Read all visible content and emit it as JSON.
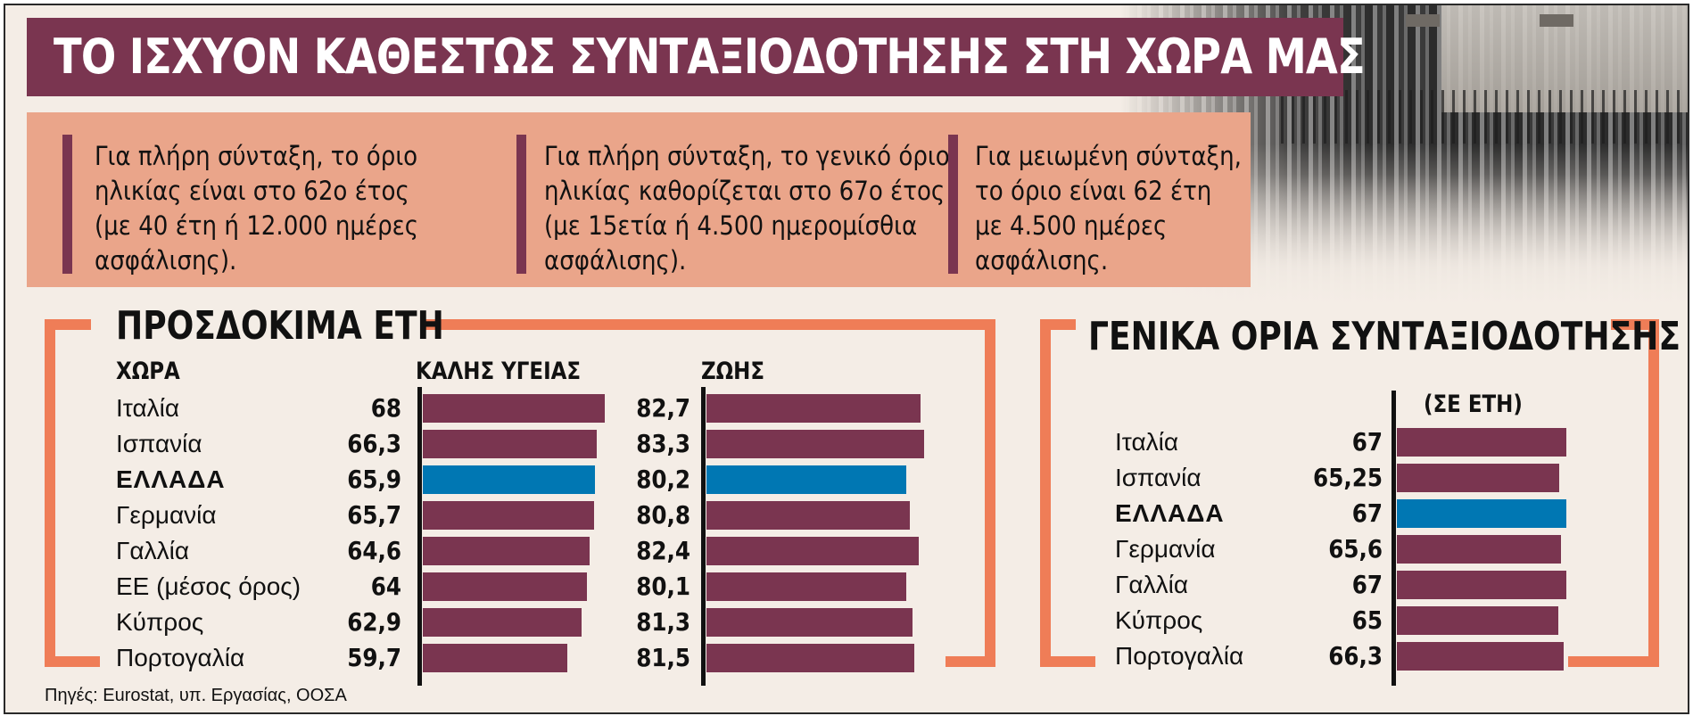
{
  "title": "ΤΟ ΙΣΧΥΟΝ ΚΑΘΕΣΤΩΣ ΣΥΝΤΑΞΙΟΔΟΤΗΣΗΣ ΣΤΗ ΧΩΡΑ ΜΑΣ",
  "info": [
    {
      "lines": [
        "Για πλήρη σύνταξη, το όριο",
        "ηλικίας είναι στο 62ο έτος",
        "(με 40 έτη ή 12.000 ημέρες",
        "ασφάλισης)."
      ]
    },
    {
      "lines": [
        "Για πλήρη σύνταξη, το γενικό όριο",
        "ηλικίας καθορίζεται στο 67ο έτος",
        "(με 15ετία ή 4.500 ημερομίσθια",
        "ασφάλισης)."
      ]
    },
    {
      "lines": [
        "Για μειωμένη σύνταξη,",
        "το όριο είναι 62 έτη",
        "με 4.500 ημέρες",
        "ασφάλισης."
      ]
    }
  ],
  "colors": {
    "bar": "#7a3550",
    "highlight": "#0077b3",
    "bracket": "#ef7d57",
    "title_bg": "#7a3550",
    "info_bg": "#eaa58a"
  },
  "source": "Πηγές: Eurostat, υπ. Εργασίας, ΟΟΣΑ",
  "chart_data": [
    {
      "type": "bar",
      "title": "ΠΡΟΣΔΟΚΙΜΑ ΕΤΗ",
      "country_header": "ΧΩΡΑ",
      "categories": [
        "Ιταλία",
        "Ισπανία",
        "ΕΛΛΑΔΑ",
        "Γερμανία",
        "Γαλλία",
        "ΕΕ (μέσος όρος)",
        "Κύπρος",
        "Πορτογαλία"
      ],
      "highlight": "ΕΛΛΑΔΑ",
      "series": [
        {
          "name": "ΚΑΛΗΣ ΥΓΕΙΑΣ",
          "values": [
            68,
            66.3,
            65.9,
            65.7,
            64.6,
            64,
            62.9,
            59.7
          ],
          "labels": [
            "68",
            "66,3",
            "65,9",
            "65,7",
            "64,6",
            "64",
            "62,9",
            "59,7"
          ]
        },
        {
          "name": "ΖΩΗΣ",
          "values": [
            82.7,
            83.3,
            80.2,
            80.8,
            82.4,
            80.1,
            81.3,
            81.5
          ],
          "labels": [
            "82,7",
            "83,3",
            "80,2",
            "80,8",
            "82,4",
            "80,1",
            "81,3",
            "81,5"
          ]
        }
      ]
    },
    {
      "type": "bar",
      "title": "ΓΕΝΙΚΑ ΟΡΙΑ ΣΥΝΤΑΞΙΟΔΟΤΗΣΗΣ",
      "subtitle": "(ΣΕ ΕΤΗ)",
      "categories": [
        "Ιταλία",
        "Ισπανία",
        "ΕΛΛΑΔΑ",
        "Γερμανία",
        "Γαλλία",
        "Κύπρος",
        "Πορτογαλία"
      ],
      "highlight": "ΕΛΛΑΔΑ",
      "values": [
        67,
        65.25,
        67,
        65.6,
        67,
        65,
        66.3
      ],
      "labels": [
        "67",
        "65,25",
        "67",
        "65,6",
        "67",
        "65",
        "66,3"
      ]
    }
  ]
}
